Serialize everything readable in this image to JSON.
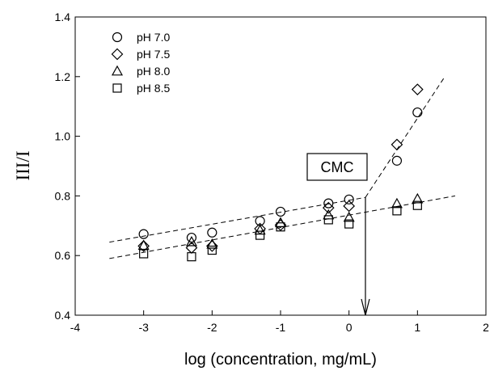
{
  "chart_data": {
    "type": "scatter",
    "title": "",
    "xlabel": "log (concentration, mg/mL)",
    "ylabel": "III/I",
    "xlim": [
      -4,
      2
    ],
    "ylim": [
      0.4,
      1.4
    ],
    "x_ticks": [
      "-4",
      "-3",
      "-2",
      "-1",
      "0",
      "1",
      "2"
    ],
    "y_ticks": [
      "0.4",
      "0.6",
      "0.8",
      "1.0",
      "1.2",
      "1.4"
    ],
    "grid": false,
    "legend_position": "top-left",
    "series": [
      {
        "name": "pH 7.0",
        "marker": "circle",
        "points": [
          [
            -3,
            0.672
          ],
          [
            -2.3,
            0.66
          ],
          [
            -2,
            0.677
          ],
          [
            -1.3,
            0.716
          ],
          [
            -1,
            0.747
          ],
          [
            -0.3,
            0.775
          ],
          [
            0,
            0.788
          ],
          [
            0.7,
            0.918
          ],
          [
            1,
            1.08
          ]
        ]
      },
      {
        "name": "pH 7.5",
        "marker": "diamond",
        "points": [
          [
            -3,
            0.632
          ],
          [
            -2.3,
            0.626
          ],
          [
            -2,
            0.632
          ],
          [
            -1.3,
            0.69
          ],
          [
            -1,
            0.702
          ],
          [
            -0.3,
            0.76
          ],
          [
            0,
            0.766
          ],
          [
            0.7,
            0.972
          ],
          [
            1,
            1.157
          ]
        ]
      },
      {
        "name": "pH 8.0",
        "marker": "triangle",
        "points": [
          [
            -3,
            0.634
          ],
          [
            -2.3,
            0.646
          ],
          [
            -2,
            0.638
          ],
          [
            -1.3,
            0.685
          ],
          [
            -1,
            0.71
          ],
          [
            -0.3,
            0.736
          ],
          [
            0,
            0.728
          ],
          [
            0.7,
            0.774
          ],
          [
            1,
            0.79
          ]
        ]
      },
      {
        "name": "pH 8.5",
        "marker": "square",
        "points": [
          [
            -3,
            0.606
          ],
          [
            -2.3,
            0.596
          ],
          [
            -2,
            0.618
          ],
          [
            -1.3,
            0.668
          ],
          [
            -1,
            0.696
          ],
          [
            -0.3,
            0.72
          ],
          [
            0,
            0.706
          ],
          [
            0.7,
            0.75
          ],
          [
            1,
            0.768
          ]
        ]
      }
    ],
    "fit_lines": [
      {
        "style": "dashed",
        "points": [
          [
            -3.5,
            0.645
          ],
          [
            0.24,
            0.795
          ]
        ]
      },
      {
        "style": "dashed",
        "points": [
          [
            -3.5,
            0.59
          ],
          [
            1.55,
            0.8
          ]
        ]
      },
      {
        "style": "dashed",
        "points": [
          [
            0.24,
            0.795
          ],
          [
            1.4,
            1.2
          ]
        ]
      }
    ],
    "annotations": [
      {
        "text": "CMC",
        "boxed": true,
        "arrow_x": 0.24,
        "arrow_from_y": 0.795,
        "arrow_to_y": 0.4
      }
    ]
  }
}
